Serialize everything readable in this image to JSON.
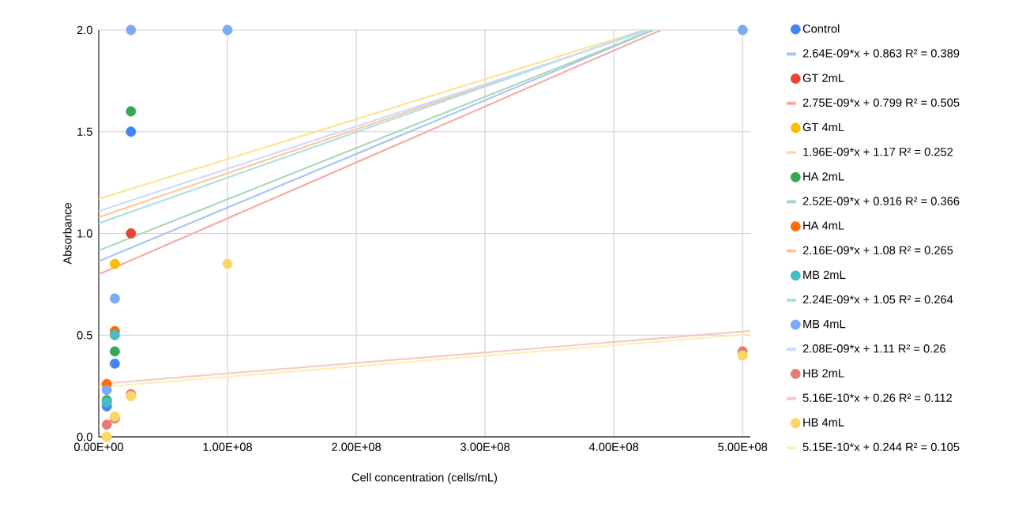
{
  "chart_data": {
    "type": "scatter",
    "xlabel": "Cell concentration (cells/mL)",
    "ylabel": "Absorbance",
    "xlim": [
      0,
      506000000
    ],
    "ylim": [
      0,
      2.0
    ],
    "xticks": [
      {
        "value": 0,
        "label": "0.00E+00"
      },
      {
        "value": 100000000,
        "label": "1.00E+08"
      },
      {
        "value": 200000000,
        "label": "2.00E+08"
      },
      {
        "value": 300000000,
        "label": "3.00E+08"
      },
      {
        "value": 400000000,
        "label": "4.00E+08"
      },
      {
        "value": 500000000,
        "label": "5.00E+08"
      }
    ],
    "yticks": [
      {
        "value": 0,
        "label": "0.0"
      },
      {
        "value": 0.5,
        "label": "0.5"
      },
      {
        "value": 1.0,
        "label": "1.0"
      },
      {
        "value": 1.5,
        "label": "1.5"
      },
      {
        "value": 2.0,
        "label": "2.0"
      }
    ],
    "grid": true,
    "legend": "right",
    "marker": "circle",
    "series": [
      {
        "name": "Control",
        "color": "#4285f4",
        "x": [
          6250000,
          12500000,
          25000000
        ],
        "values": [
          0.15,
          0.36,
          1.5
        ]
      },
      {
        "name": "2.64E-09*x + 0.863 R² = 0.389",
        "type": "line",
        "marker": "none",
        "color": "#a9c4f5",
        "x": [
          0,
          430700000
        ],
        "values": [
          0.863,
          2.0
        ]
      },
      {
        "name": "GT 2mL",
        "color": "#ea4335",
        "x": [
          25000000
        ],
        "values": [
          1.0
        ]
      },
      {
        "name": "2.75E-09*x + 0.799 R² = 0.505",
        "type": "line",
        "marker": "none",
        "color": "#f4aaa4",
        "x": [
          0,
          436700000
        ],
        "values": [
          0.799,
          2.0
        ]
      },
      {
        "name": "GT 4mL",
        "color": "#fbbc04",
        "x": [
          12500000
        ],
        "values": [
          0.85
        ]
      },
      {
        "name": "1.96E-09*x + 1.17 R² = 0.252",
        "type": "line",
        "marker": "none",
        "color": "#fde293",
        "x": [
          0,
          423500000
        ],
        "values": [
          1.17,
          2.0
        ]
      },
      {
        "name": "HA 2mL",
        "color": "#34a853",
        "x": [
          6250000,
          12500000,
          25000000
        ],
        "values": [
          0.18,
          0.42,
          1.6
        ]
      },
      {
        "name": "2.52E-09*x + 0.916 R² = 0.366",
        "type": "line",
        "marker": "none",
        "color": "#a8d8b4",
        "x": [
          0,
          430200000
        ],
        "values": [
          0.916,
          2.0
        ]
      },
      {
        "name": "HA 4mL",
        "color": "#ff6d01",
        "x": [
          6250000,
          12500000
        ],
        "values": [
          0.26,
          0.52
        ]
      },
      {
        "name": "2.16E-09*x + 1.08 R² = 0.265",
        "type": "line",
        "marker": "none",
        "color": "#ffc499",
        "x": [
          0,
          425900000
        ],
        "values": [
          1.08,
          2.0
        ]
      },
      {
        "name": "MB 2mL",
        "color": "#46bdc6",
        "x": [
          6250000,
          12500000
        ],
        "values": [
          0.17,
          0.5
        ]
      },
      {
        "name": "2.24E-09*x + 1.05 R² = 0.264",
        "type": "line",
        "marker": "none",
        "color": "#aedfe3",
        "x": [
          0,
          424100000
        ],
        "values": [
          1.05,
          2.0
        ]
      },
      {
        "name": "MB 4mL",
        "color": "#7baaf7",
        "x": [
          6250000,
          12500000,
          25000000,
          100000000,
          500000000
        ],
        "values": [
          0.23,
          0.68,
          2.0,
          2.0,
          2.0
        ]
      },
      {
        "name": "2.08E-09*x + 1.11 R² = 0.26",
        "type": "line",
        "marker": "none",
        "color": "#cadcfb",
        "x": [
          0,
          427900000
        ],
        "values": [
          1.11,
          2.0
        ]
      },
      {
        "name": "HB 2mL",
        "color": "#e67c73",
        "x": [
          6250000,
          12500000,
          25000000,
          500000000
        ],
        "values": [
          0.06,
          0.09,
          0.21,
          0.42
        ]
      },
      {
        "name": "5.16E-10*x + 0.26 R² = 0.112",
        "type": "line",
        "marker": "none",
        "color": "#f5c9c5",
        "x": [
          0,
          506000000
        ],
        "values": [
          0.26,
          0.521
        ]
      },
      {
        "name": "HB 4mL",
        "color": "#fdd663",
        "x": [
          6250000,
          12500000,
          25000000,
          100000000,
          500000000
        ],
        "values": [
          0.0,
          0.1,
          0.2,
          0.85,
          0.4
        ]
      },
      {
        "name": "5.15E-10*x + 0.244 R² = 0.105",
        "type": "line",
        "marker": "none",
        "color": "#feeeb4",
        "x": [
          0,
          506000000
        ],
        "values": [
          0.244,
          0.505
        ]
      }
    ]
  }
}
